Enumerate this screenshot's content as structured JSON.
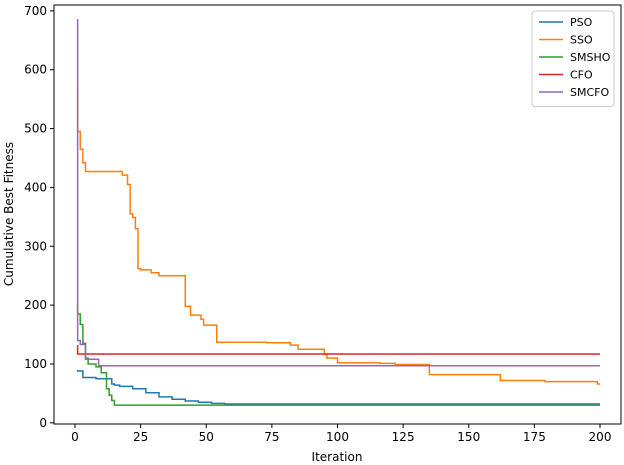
{
  "chart_data": {
    "type": "line",
    "title": "",
    "xlabel": "Iteration",
    "ylabel": "Cumulative Best Fitness",
    "xlim": [
      -8,
      208
    ],
    "ylim": [
      -2,
      710
    ],
    "xticks": [
      0,
      25,
      50,
      75,
      100,
      125,
      150,
      175,
      200
    ],
    "yticks": [
      0,
      100,
      200,
      300,
      400,
      500,
      600,
      700
    ],
    "grid": false,
    "legend_position": "top-right",
    "series": [
      {
        "name": "PSO",
        "color": "#1f77b4",
        "step": true,
        "points": [
          [
            1,
            90
          ],
          [
            3,
            88
          ],
          [
            8,
            77
          ],
          [
            14,
            75
          ],
          [
            15,
            66
          ],
          [
            17,
            64
          ],
          [
            22,
            62
          ],
          [
            27,
            58
          ],
          [
            32,
            51
          ],
          [
            37,
            44
          ],
          [
            42,
            40
          ],
          [
            47,
            37
          ],
          [
            52,
            35
          ],
          [
            57,
            33
          ],
          [
            60,
            32
          ],
          [
            200,
            32
          ]
        ]
      },
      {
        "name": "SSO",
        "color": "#ff7f0e",
        "step": true,
        "points": [
          [
            1,
            570
          ],
          [
            2,
            495
          ],
          [
            3,
            465
          ],
          [
            4,
            442
          ],
          [
            11,
            427
          ],
          [
            18,
            427
          ],
          [
            20,
            421
          ],
          [
            21,
            405
          ],
          [
            22,
            355
          ],
          [
            23,
            349
          ],
          [
            24,
            330
          ],
          [
            25,
            262
          ],
          [
            29,
            260
          ],
          [
            32,
            255
          ],
          [
            42,
            250
          ],
          [
            44,
            198
          ],
          [
            48,
            183
          ],
          [
            49,
            176
          ],
          [
            54,
            166
          ],
          [
            73,
            137
          ],
          [
            82,
            136
          ],
          [
            85,
            132
          ],
          [
            95,
            125
          ],
          [
            96,
            116
          ],
          [
            100,
            110
          ],
          [
            116,
            102
          ],
          [
            122,
            101
          ],
          [
            135,
            99
          ],
          [
            162,
            82
          ],
          [
            179,
            72
          ],
          [
            185,
            70
          ],
          [
            199,
            70
          ],
          [
            200,
            66
          ]
        ]
      },
      {
        "name": "SMSHO",
        "color": "#2ca02c",
        "step": true,
        "points": [
          [
            1,
            200
          ],
          [
            2,
            185
          ],
          [
            3,
            167
          ],
          [
            4,
            135
          ],
          [
            5,
            110
          ],
          [
            8,
            100
          ],
          [
            10,
            95
          ],
          [
            12,
            85
          ],
          [
            13,
            58
          ],
          [
            14,
            47
          ],
          [
            15,
            38
          ],
          [
            16,
            30
          ],
          [
            200,
            30
          ]
        ]
      },
      {
        "name": "CFO",
        "color": "#d62728",
        "step": true,
        "points": [
          [
            1,
            132
          ],
          [
            2,
            117
          ],
          [
            200,
            117
          ]
        ]
      },
      {
        "name": "SMCFO",
        "color": "#9467bd",
        "step": true,
        "points": [
          [
            1,
            686
          ],
          [
            2,
            140
          ],
          [
            4,
            133
          ],
          [
            9,
            108
          ],
          [
            10,
            97
          ],
          [
            200,
            97
          ]
        ]
      }
    ]
  }
}
